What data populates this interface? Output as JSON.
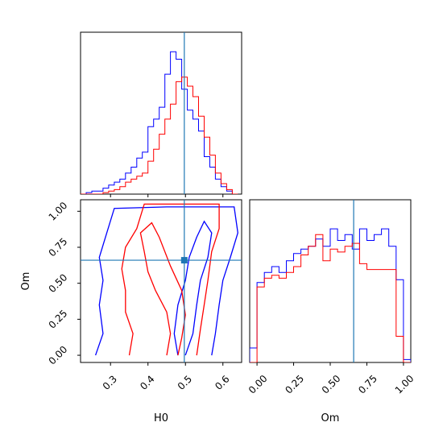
{
  "chart_data": {
    "type": "corner",
    "parameters": [
      "H0",
      "Om"
    ],
    "truth": {
      "H0": 0.497,
      "Om": 0.66
    },
    "colors": {
      "run_a": "#0000ff",
      "run_b": "#ff0000",
      "truth": "#1f77b4"
    },
    "panels": [
      {
        "id": "hist_H0",
        "type": "histogram",
        "xlabel": "",
        "xlim": [
          0.22,
          0.65
        ],
        "ylim": [
          0,
          1.08
        ],
        "xticks": [
          0.3,
          0.4,
          0.5,
          0.6
        ],
        "xticklabels_shown": false,
        "series": [
          {
            "color": "#0000ff",
            "bins": [
              0.22,
              0.235,
              0.25,
              0.265,
              0.28,
              0.295,
              0.31,
              0.325,
              0.34,
              0.355,
              0.37,
              0.385,
              0.4,
              0.415,
              0.43,
              0.445,
              0.46,
              0.475,
              0.49,
              0.505,
              0.52,
              0.535,
              0.55,
              0.565,
              0.58,
              0.595,
              0.61,
              0.625,
              0.64
            ],
            "values": [
              0,
              0.01,
              0.02,
              0.02,
              0.04,
              0.06,
              0.08,
              0.1,
              0.14,
              0.18,
              0.24,
              0.28,
              0.45,
              0.5,
              0.58,
              0.8,
              0.95,
              0.9,
              0.7,
              0.56,
              0.5,
              0.42,
              0.25,
              0.18,
              0.1,
              0.05,
              0.02,
              0
            ]
          },
          {
            "color": "#ff0000",
            "bins": [
              0.22,
              0.235,
              0.25,
              0.265,
              0.28,
              0.295,
              0.31,
              0.325,
              0.34,
              0.355,
              0.37,
              0.385,
              0.4,
              0.415,
              0.43,
              0.445,
              0.46,
              0.475,
              0.49,
              0.505,
              0.52,
              0.535,
              0.55,
              0.565,
              0.58,
              0.595,
              0.61,
              0.625,
              0.64
            ],
            "values": [
              0,
              0,
              0,
              0,
              0.01,
              0.02,
              0.03,
              0.05,
              0.08,
              0.1,
              0.12,
              0.14,
              0.22,
              0.3,
              0.4,
              0.5,
              0.6,
              0.75,
              0.78,
              0.72,
              0.65,
              0.52,
              0.38,
              0.26,
              0.14,
              0.07,
              0.03,
              0
            ]
          }
        ]
      },
      {
        "id": "hist_Om",
        "type": "histogram",
        "xlabel": "Om",
        "xlim": [
          -0.05,
          1.05
        ],
        "ylim": [
          0,
          1.12
        ],
        "xticks": [
          0.0,
          0.25,
          0.5,
          0.75,
          1.0
        ],
        "xticklabels": [
          "0.00",
          "0.25",
          "0.50",
          "0.75",
          "1.00"
        ],
        "series": [
          {
            "color": "#0000ff",
            "bins": [
              -0.05,
              0.0,
              0.05,
              0.1,
              0.15,
              0.2,
              0.25,
              0.3,
              0.35,
              0.4,
              0.45,
              0.5,
              0.55,
              0.6,
              0.65,
              0.7,
              0.75,
              0.8,
              0.85,
              0.9,
              0.95,
              1.0,
              1.05
            ],
            "values": [
              0.1,
              0.55,
              0.62,
              0.66,
              0.62,
              0.7,
              0.75,
              0.78,
              0.8,
              0.85,
              0.8,
              0.92,
              0.84,
              0.88,
              0.78,
              0.92,
              0.84,
              0.88,
              0.92,
              0.8,
              0.57,
              0.02
            ]
          },
          {
            "color": "#ff0000",
            "bins": [
              -0.05,
              0.0,
              0.05,
              0.1,
              0.15,
              0.2,
              0.25,
              0.3,
              0.35,
              0.4,
              0.45,
              0.5,
              0.55,
              0.6,
              0.65,
              0.7,
              0.75,
              0.8,
              0.85,
              0.9,
              0.95,
              1.0,
              1.05
            ],
            "values": [
              0,
              0.52,
              0.58,
              0.6,
              0.58,
              0.62,
              0.66,
              0.74,
              0.8,
              0.88,
              0.7,
              0.78,
              0.76,
              0.8,
              0.82,
              0.68,
              0.64,
              0.64,
              0.64,
              0.64,
              0.18,
              0
            ]
          }
        ]
      },
      {
        "id": "contour_H0_Om",
        "type": "contour",
        "xlabel": "H0",
        "ylabel": "Om",
        "xlim": [
          0.22,
          0.65
        ],
        "ylim": [
          -0.05,
          1.08
        ],
        "xticks": [
          0.3,
          0.4,
          0.5,
          0.6
        ],
        "xticklabels": [
          "0.3",
          "0.4",
          "0.5",
          "0.6"
        ],
        "yticks": [
          0.0,
          0.25,
          0.5,
          0.75,
          1.0
        ],
        "yticklabels": [
          "0.00",
          "0.25",
          "0.50",
          "0.75",
          "1.00"
        ],
        "series": [
          {
            "color": "#0000ff",
            "level_1": [
              [
                0.48,
                0.0
              ],
              [
                0.47,
                0.15
              ],
              [
                0.48,
                0.35
              ],
              [
                0.5,
                0.52
              ],
              [
                0.51,
                0.68
              ],
              [
                0.53,
                0.82
              ],
              [
                0.55,
                0.93
              ],
              [
                0.57,
                0.85
              ],
              [
                0.56,
                0.68
              ],
              [
                0.54,
                0.52
              ],
              [
                0.53,
                0.35
              ],
              [
                0.52,
                0.15
              ],
              [
                0.5,
                0.0
              ]
            ],
            "level_2": [
              [
                0.26,
                0.0
              ],
              [
                0.28,
                0.15
              ],
              [
                0.27,
                0.35
              ],
              [
                0.28,
                0.52
              ],
              [
                0.27,
                0.68
              ],
              [
                0.29,
                0.85
              ],
              [
                0.31,
                1.02
              ],
              [
                0.45,
                1.03
              ],
              [
                0.55,
                1.03
              ],
              [
                0.63,
                1.03
              ],
              [
                0.64,
                0.85
              ],
              [
                0.62,
                0.68
              ],
              [
                0.6,
                0.52
              ],
              [
                0.59,
                0.35
              ],
              [
                0.58,
                0.15
              ],
              [
                0.57,
                0.0
              ]
            ]
          },
          {
            "color": "#ff0000",
            "level_1": [
              [
                0.45,
                0.0
              ],
              [
                0.46,
                0.15
              ],
              [
                0.45,
                0.3
              ],
              [
                0.42,
                0.45
              ],
              [
                0.4,
                0.58
              ],
              [
                0.39,
                0.72
              ],
              [
                0.38,
                0.85
              ],
              [
                0.41,
                0.92
              ],
              [
                0.43,
                0.82
              ],
              [
                0.46,
                0.62
              ],
              [
                0.49,
                0.45
              ],
              [
                0.5,
                0.28
              ],
              [
                0.49,
                0.12
              ],
              [
                0.48,
                0.0
              ]
            ],
            "level_2": [
              [
                0.35,
                0.0
              ],
              [
                0.36,
                0.15
              ],
              [
                0.34,
                0.3
              ],
              [
                0.34,
                0.45
              ],
              [
                0.33,
                0.6
              ],
              [
                0.34,
                0.75
              ],
              [
                0.37,
                0.88
              ],
              [
                0.39,
                1.05
              ],
              [
                0.5,
                1.05
              ],
              [
                0.59,
                1.05
              ],
              [
                0.59,
                0.88
              ],
              [
                0.57,
                0.72
              ],
              [
                0.56,
                0.52
              ],
              [
                0.55,
                0.35
              ],
              [
                0.54,
                0.18
              ],
              [
                0.53,
                0.0
              ]
            ]
          }
        ]
      }
    ]
  }
}
